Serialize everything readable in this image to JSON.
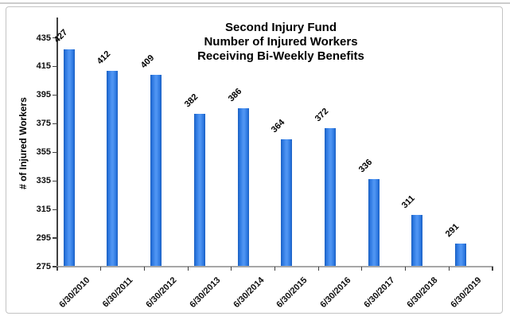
{
  "chart_data": {
    "type": "bar",
    "title_lines": [
      "Second Injury Fund",
      "Number of Injured Workers",
      "Receiving Bi-Weekly Benefits"
    ],
    "categories": [
      "6/30/2010",
      "6/30/2011",
      "6/30/2012",
      "6/30/2013",
      "6/30/2014",
      "6/30/2015",
      "6/30/2016",
      "6/30/2017",
      "6/30/2018",
      "6/30/2019"
    ],
    "values": [
      427,
      412,
      409,
      382,
      386,
      364,
      372,
      336,
      311,
      291
    ],
    "data_labels": [
      427,
      412,
      409,
      382,
      386,
      364,
      372,
      336,
      311,
      291
    ],
    "xlabel": "",
    "ylabel": "# of Injured Workers",
    "ylim": [
      275,
      435
    ],
    "yticks": [
      275,
      295,
      315,
      335,
      355,
      375,
      395,
      415,
      435
    ],
    "grid": "off",
    "legend": "none",
    "bar_color_center": "#4e94f2",
    "bar_color_mid": "#2c77e0",
    "bar_color_edge": "#1a5fc0",
    "axis_color": "#404040",
    "baseline_color": "#a6a6a6",
    "text_color": "#000000",
    "frame_border_color": "#c3c3c3"
  }
}
